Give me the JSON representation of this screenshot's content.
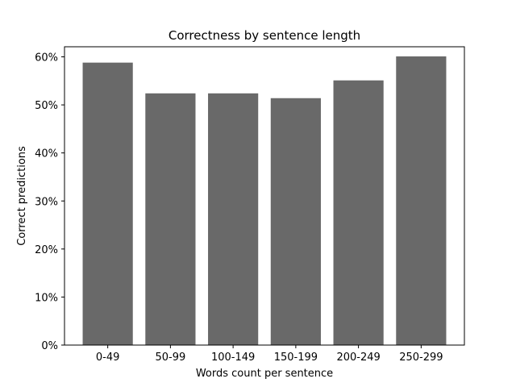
{
  "chart_data": {
    "type": "bar",
    "title": "Correctness by sentence length",
    "xlabel": "Words count per sentence",
    "ylabel": "Correct predictions",
    "categories": [
      "0-49",
      "50-99",
      "100-149",
      "150-199",
      "200-249",
      "250-299"
    ],
    "values": [
      58.8,
      52.4,
      52.4,
      51.4,
      55.1,
      60.1
    ],
    "ylim": [
      0,
      62.1
    ],
    "yticks": [
      "0%",
      "10%",
      "20%",
      "30%",
      "40%",
      "50%",
      "60%"
    ],
    "ytick_values": [
      0,
      10,
      20,
      30,
      40,
      50,
      60
    ],
    "grid": false,
    "bar_color": "#696969"
  }
}
